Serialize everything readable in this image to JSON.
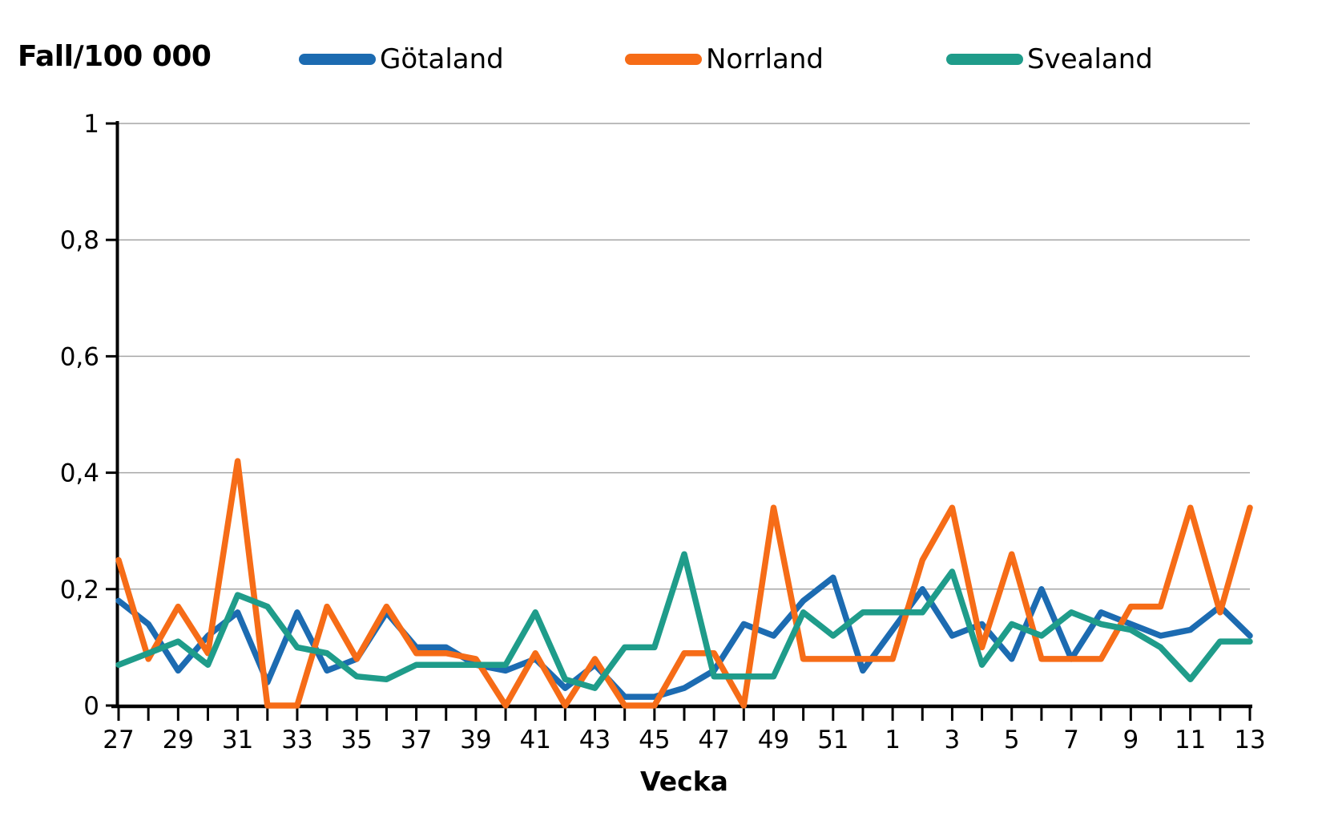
{
  "header": {
    "title": "Fall/100 000"
  },
  "chart_data": {
    "type": "line",
    "title": "Fall/100 000",
    "xlabel": "Vecka",
    "ylabel": "Fall/100 000",
    "categories": [
      "27",
      "28",
      "29",
      "30",
      "31",
      "32",
      "33",
      "34",
      "35",
      "36",
      "37",
      "38",
      "39",
      "40",
      "41",
      "42",
      "43",
      "44",
      "45",
      "46",
      "47",
      "48",
      "49",
      "50",
      "51",
      "52",
      "1",
      "2",
      "3",
      "4",
      "5",
      "6",
      "7",
      "8",
      "9",
      "10",
      "11",
      "12",
      "13"
    ],
    "x_tick_labels": [
      "27",
      "29",
      "31",
      "33",
      "35",
      "37",
      "39",
      "41",
      "43",
      "45",
      "47",
      "49",
      "51",
      "1",
      "3",
      "5",
      "7",
      "9",
      "11",
      "13"
    ],
    "ylim": [
      0,
      1
    ],
    "yticks": [
      {
        "v": 0,
        "label": "0"
      },
      {
        "v": 0.2,
        "label": "0,2"
      },
      {
        "v": 0.4,
        "label": "0,4"
      },
      {
        "v": 0.6,
        "label": "0,6"
      },
      {
        "v": 0.8,
        "label": "0,8"
      },
      {
        "v": 1,
        "label": "1"
      }
    ],
    "grid": "horizontal",
    "legend_position": "top",
    "series": [
      {
        "name": "Götaland",
        "color": "#1C6BB1",
        "values": [
          0.18,
          0.14,
          0.06,
          0.12,
          0.16,
          0.04,
          0.16,
          0.06,
          0.08,
          0.16,
          0.1,
          0.1,
          0.07,
          0.06,
          0.08,
          0.03,
          0.07,
          0.015,
          0.015,
          0.03,
          0.06,
          0.14,
          0.12,
          0.18,
          0.22,
          0.06,
          0.13,
          0.2,
          0.12,
          0.14,
          0.08,
          0.2,
          0.08,
          0.16,
          0.14,
          0.12,
          0.13,
          0.17,
          0.12
        ]
      },
      {
        "name": "Norrland",
        "color": "#F66C17",
        "values": [
          0.25,
          0.08,
          0.17,
          0.09,
          0.42,
          0,
          0,
          0.17,
          0.08,
          0.17,
          0.09,
          0.09,
          0.08,
          0,
          0.09,
          0,
          0.08,
          0,
          0,
          0.09,
          0.09,
          0,
          0.34,
          0.08,
          0.08,
          0.08,
          0.08,
          0.25,
          0.34,
          0.1,
          0.26,
          0.08,
          0.08,
          0.08,
          0.17,
          0.17,
          0.34,
          0.16,
          0.34
        ]
      },
      {
        "name": "Svealand",
        "color": "#1F9C8A",
        "values": [
          0.07,
          0.09,
          0.11,
          0.07,
          0.19,
          0.17,
          0.1,
          0.09,
          0.05,
          0.045,
          0.07,
          0.07,
          0.07,
          0.07,
          0.16,
          0.045,
          0.03,
          0.1,
          0.1,
          0.26,
          0.05,
          0.05,
          0.05,
          0.16,
          0.12,
          0.16,
          0.16,
          0.16,
          0.23,
          0.07,
          0.14,
          0.12,
          0.16,
          0.14,
          0.13,
          0.1,
          0.045,
          0.11,
          0.11
        ]
      }
    ],
    "colors": {
      "gridline": "#A6A6A6",
      "axis": "#000000",
      "background": "#FFFFFF"
    }
  }
}
